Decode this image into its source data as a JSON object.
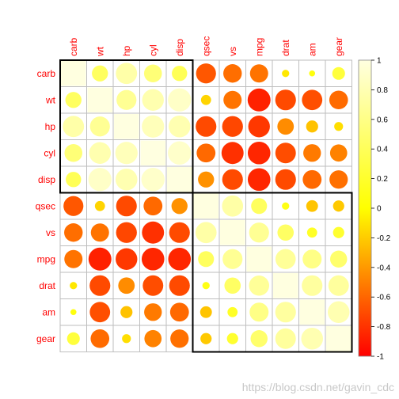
{
  "chart_data": {
    "type": "heatmap",
    "title": "",
    "variables": [
      "carb",
      "wt",
      "hp",
      "cyl",
      "disp",
      "qsec",
      "vs",
      "mpg",
      "drat",
      "am",
      "gear"
    ],
    "colorbar": {
      "range": [
        -1,
        1
      ],
      "ticks": [
        "-1",
        "-0.8",
        "-0.6",
        "-0.4",
        "-0.2",
        "0",
        "0.2",
        "0.4",
        "0.6",
        "0.8",
        "1"
      ],
      "colors": {
        "neg": "#ff0000",
        "mid": "#ffff00",
        "pos": "#ffffe0"
      }
    },
    "clusters": [
      {
        "start": 0,
        "end": 4
      },
      {
        "start": 5,
        "end": 10
      }
    ],
    "values": [
      [
        1.0,
        0.43,
        0.75,
        0.53,
        0.39,
        -0.66,
        -0.57,
        -0.55,
        -0.09,
        0.06,
        0.27
      ],
      [
        0.43,
        1.0,
        0.66,
        0.78,
        0.89,
        -0.17,
        -0.55,
        -0.87,
        -0.71,
        -0.69,
        -0.58
      ],
      [
        0.75,
        0.66,
        1.0,
        0.83,
        0.79,
        -0.71,
        -0.72,
        -0.78,
        -0.45,
        -0.24,
        -0.13
      ],
      [
        0.53,
        0.78,
        0.83,
        1.0,
        0.9,
        -0.59,
        -0.81,
        -0.85,
        -0.7,
        -0.52,
        -0.49
      ],
      [
        0.39,
        0.89,
        0.79,
        0.9,
        1.0,
        -0.43,
        -0.71,
        -0.85,
        -0.71,
        -0.59,
        -0.56
      ],
      [
        -0.66,
        -0.17,
        -0.71,
        -0.59,
        -0.43,
        1.0,
        0.74,
        0.42,
        0.09,
        -0.23,
        -0.21
      ],
      [
        -0.57,
        -0.55,
        -0.72,
        -0.81,
        -0.71,
        0.74,
        1.0,
        0.66,
        0.44,
        0.17,
        0.21
      ],
      [
        -0.55,
        -0.87,
        -0.78,
        -0.85,
        -0.85,
        0.42,
        0.66,
        1.0,
        0.68,
        0.6,
        0.48
      ],
      [
        -0.09,
        -0.71,
        -0.45,
        -0.7,
        -0.71,
        0.09,
        0.44,
        0.68,
        1.0,
        0.71,
        0.7
      ],
      [
        0.06,
        -0.69,
        -0.24,
        -0.52,
        -0.59,
        -0.23,
        0.17,
        0.6,
        0.71,
        1.0,
        0.79
      ],
      [
        0.27,
        -0.58,
        -0.13,
        -0.49,
        -0.56,
        -0.21,
        0.21,
        0.48,
        0.7,
        0.79,
        1.0
      ]
    ]
  },
  "watermark": "https://blog.csdn.net/gavin_cdc"
}
